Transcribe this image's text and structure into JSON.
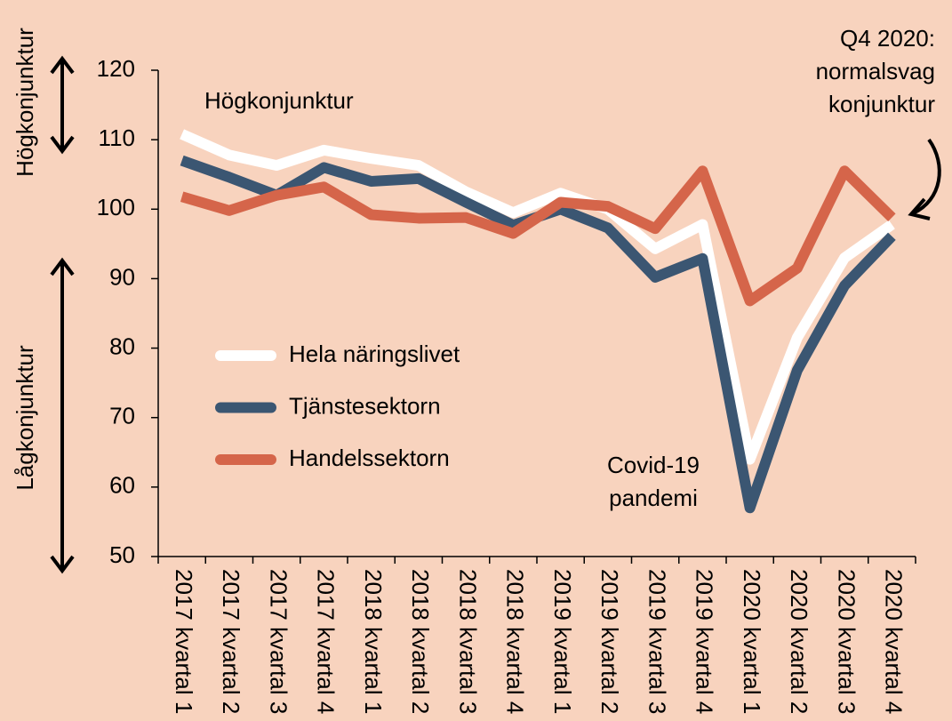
{
  "chart_data": {
    "type": "line",
    "categories": [
      "2017 kvartal 1",
      "2017 kvartal 2",
      "2017 kvartal 3",
      "2017 kvartal 4",
      "2018 kvartal 1",
      "2018 kvartal 2",
      "2018 kvartal 3",
      "2018 kvartal 4",
      "2019 kvartal 1",
      "2019 kvartal 2",
      "2019 kvartal 3",
      "2019 kvartal 4",
      "2020 kvartal 1",
      "2020 kvartal 2",
      "2020 kvartal 3",
      "2020 kvartal 4"
    ],
    "series": [
      {
        "name": "Hela näringslivet",
        "color": "#ffffff",
        "values": [
          110.8,
          107.8,
          106.3,
          108.5,
          107.3,
          106.3,
          102.5,
          99.5,
          102.3,
          100.0,
          94.3,
          97.8,
          64.0,
          81.5,
          93.0,
          97.8
        ]
      },
      {
        "name": "Tjänstesektorn",
        "color": "#3b5672",
        "values": [
          107.0,
          104.6,
          102.0,
          106.0,
          104.0,
          104.4,
          101.0,
          97.7,
          100.0,
          97.3,
          90.2,
          92.9,
          57.0,
          76.8,
          89.0,
          96.1
        ]
      },
      {
        "name": "Handelssektorn",
        "color": "#d5654a",
        "values": [
          101.8,
          99.8,
          102.0,
          103.2,
          99.2,
          98.7,
          98.8,
          96.5,
          101.0,
          100.4,
          97.2,
          105.5,
          86.8,
          91.5,
          105.5,
          98.8
        ]
      }
    ],
    "ylim": [
      50,
      120
    ],
    "yticks": [
      50,
      60,
      70,
      80,
      90,
      100,
      110,
      120
    ],
    "y_side_labels": [
      "Högkonjunktur",
      "Lågkonjunktur"
    ],
    "annotations": [
      [
        "Högkonjunktur"
      ],
      [
        "Q4 2020:",
        "normalsvag",
        "konjunktur"
      ],
      [
        "Covid-19",
        "pandemi"
      ]
    ]
  }
}
